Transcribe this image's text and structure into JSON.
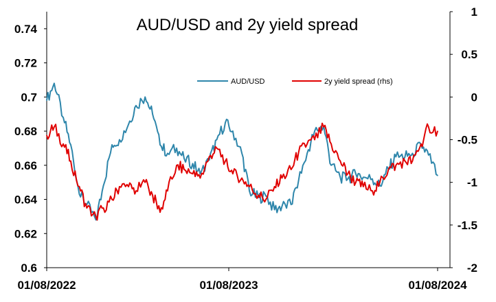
{
  "chart_data": {
    "type": "line",
    "title": "AUD/USD and 2y yield spread",
    "xlabel": "",
    "ylabel": "",
    "x_ticks": [
      "01/08/2022",
      "01/08/2023",
      "01/08/2024"
    ],
    "y_left": {
      "range": [
        0.6,
        0.75
      ],
      "ticks": [
        "0.6",
        "0.62",
        "0.64",
        "0.66",
        "0.68",
        "0.7",
        "0.72",
        "0.74"
      ]
    },
    "y_right": {
      "range": [
        -2,
        1
      ],
      "ticks": [
        "-2",
        "-1.5",
        "-1",
        "-0.5",
        "0",
        "0.5",
        "1"
      ]
    },
    "grid": false,
    "legend_position": "upper-center",
    "series": [
      {
        "name": "AUD/USD",
        "axis": "left",
        "color": "#2E86AB",
        "x": [
          "2022-08-01",
          "2022-08-15",
          "2022-09-01",
          "2022-09-15",
          "2022-10-01",
          "2022-10-15",
          "2022-11-01",
          "2022-11-15",
          "2022-12-01",
          "2022-12-15",
          "2023-01-01",
          "2023-01-15",
          "2023-02-01",
          "2023-02-15",
          "2023-03-01",
          "2023-03-15",
          "2023-04-01",
          "2023-04-15",
          "2023-05-01",
          "2023-05-15",
          "2023-06-01",
          "2023-06-15",
          "2023-07-01",
          "2023-07-15",
          "2023-08-01",
          "2023-08-15",
          "2023-09-01",
          "2023-09-15",
          "2023-10-01",
          "2023-10-15",
          "2023-11-01",
          "2023-11-15",
          "2023-12-01",
          "2023-12-15",
          "2024-01-01",
          "2024-01-15",
          "2024-02-01",
          "2024-02-15",
          "2024-03-01",
          "2024-03-15",
          "2024-04-01",
          "2024-04-15",
          "2024-05-01",
          "2024-05-15",
          "2024-06-01",
          "2024-06-15",
          "2024-07-01",
          "2024-07-15",
          "2024-08-01"
        ],
        "values": [
          0.698,
          0.708,
          0.688,
          0.672,
          0.643,
          0.637,
          0.628,
          0.648,
          0.672,
          0.675,
          0.684,
          0.695,
          0.7,
          0.69,
          0.672,
          0.667,
          0.67,
          0.664,
          0.661,
          0.655,
          0.663,
          0.675,
          0.685,
          0.68,
          0.667,
          0.645,
          0.641,
          0.642,
          0.634,
          0.636,
          0.637,
          0.651,
          0.667,
          0.68,
          0.683,
          0.66,
          0.653,
          0.652,
          0.655,
          0.653,
          0.652,
          0.648,
          0.658,
          0.665,
          0.665,
          0.667,
          0.672,
          0.666,
          0.654
        ]
      },
      {
        "name": "2y yield spread (rhs)",
        "axis": "right",
        "color": "#E00000",
        "x": [
          "2022-08-01",
          "2022-08-15",
          "2022-09-01",
          "2022-09-15",
          "2022-10-01",
          "2022-10-15",
          "2022-11-01",
          "2022-11-15",
          "2022-12-01",
          "2022-12-15",
          "2023-01-01",
          "2023-01-15",
          "2023-02-01",
          "2023-02-15",
          "2023-03-01",
          "2023-03-15",
          "2023-04-01",
          "2023-04-15",
          "2023-05-01",
          "2023-05-15",
          "2023-06-01",
          "2023-06-15",
          "2023-07-01",
          "2023-07-15",
          "2023-08-01",
          "2023-08-15",
          "2023-09-01",
          "2023-09-15",
          "2023-10-01",
          "2023-10-15",
          "2023-11-01",
          "2023-11-15",
          "2023-12-01",
          "2023-12-15",
          "2024-01-01",
          "2024-01-15",
          "2024-02-01",
          "2024-02-15",
          "2024-03-01",
          "2024-03-15",
          "2024-04-01",
          "2024-04-15",
          "2024-05-01",
          "2024-05-15",
          "2024-06-01",
          "2024-06-15",
          "2024-07-01",
          "2024-07-15",
          "2024-08-01"
        ],
        "values": [
          -0.45,
          -0.35,
          -0.55,
          -0.75,
          -1.05,
          -1.3,
          -1.4,
          -1.3,
          -1.2,
          -1.05,
          -1.05,
          -1.1,
          -1.0,
          -1.15,
          -1.35,
          -1.1,
          -0.8,
          -0.85,
          -0.9,
          -0.95,
          -0.7,
          -0.6,
          -0.75,
          -0.9,
          -0.95,
          -1.05,
          -1.15,
          -1.2,
          -1.05,
          -0.95,
          -0.85,
          -0.65,
          -0.55,
          -0.5,
          -0.35,
          -0.55,
          -0.75,
          -0.9,
          -1.0,
          -1.05,
          -1.1,
          -1.0,
          -0.85,
          -0.8,
          -0.75,
          -0.75,
          -0.55,
          -0.35,
          -0.4
        ]
      }
    ]
  }
}
